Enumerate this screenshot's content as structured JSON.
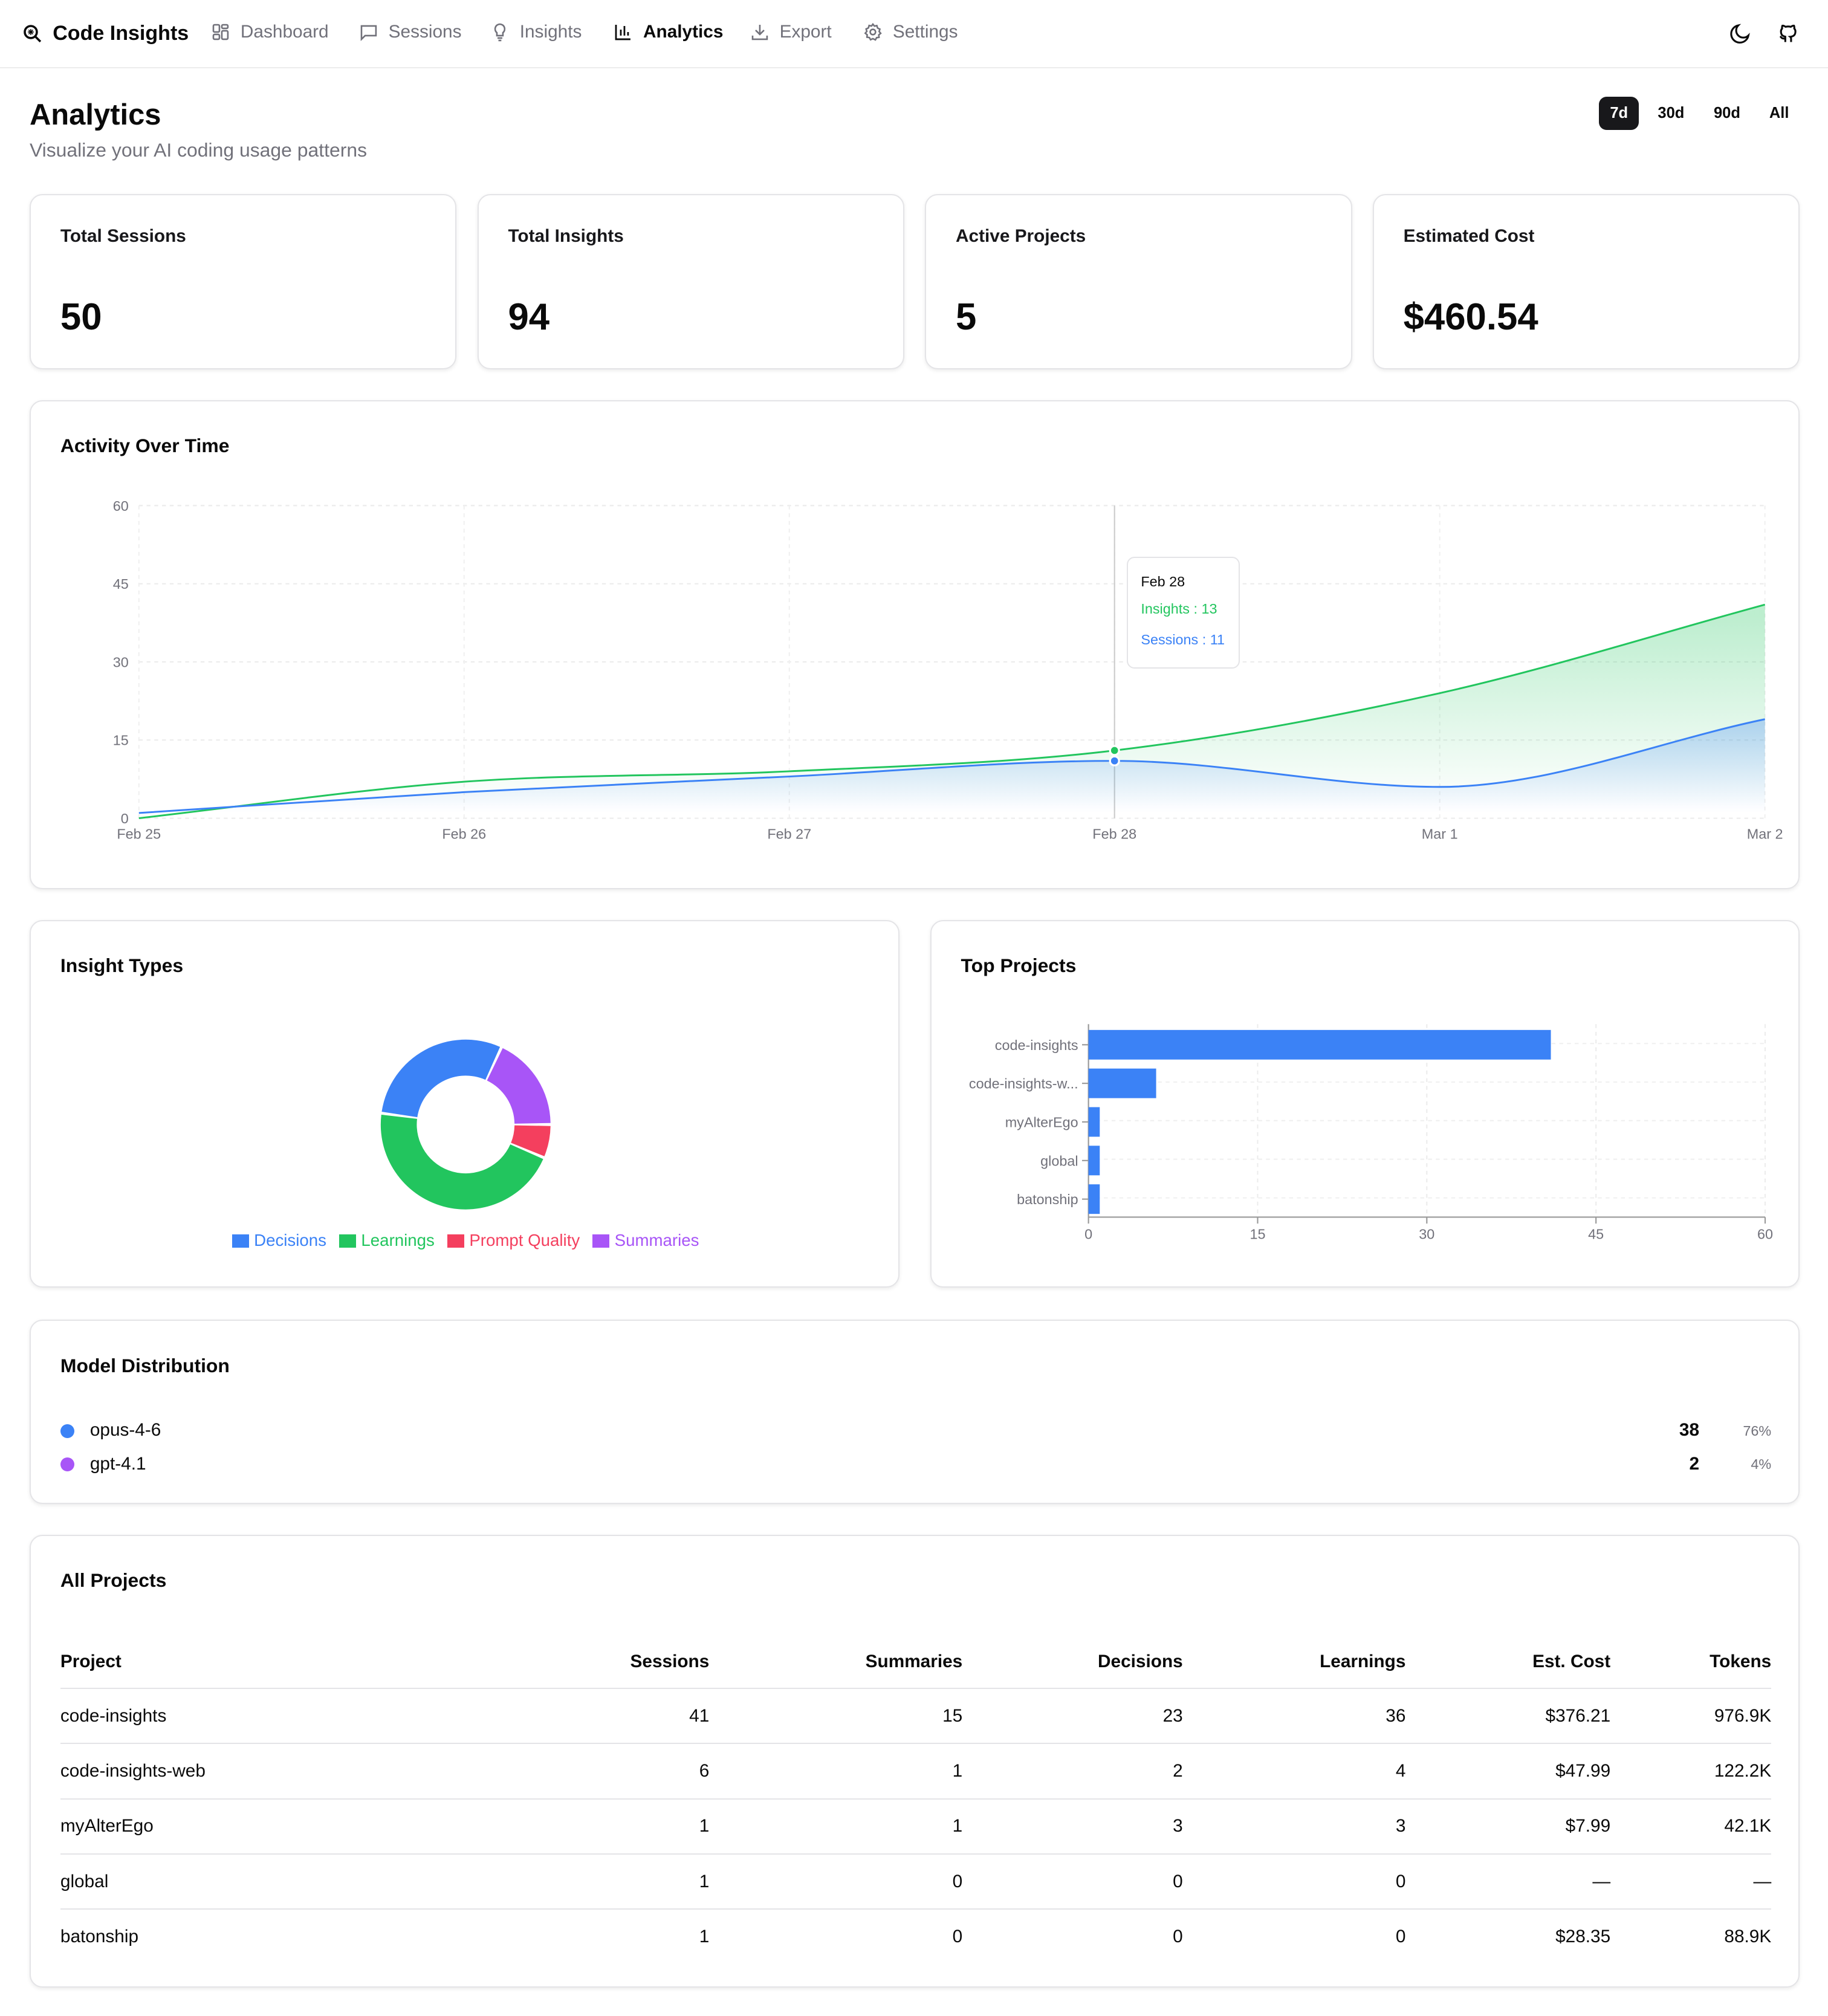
{
  "nav": {
    "brand": "Code Insights",
    "items": [
      {
        "label": "Dashboard",
        "icon": "grid-icon"
      },
      {
        "label": "Sessions",
        "icon": "message-icon"
      },
      {
        "label": "Insights",
        "icon": "lightbulb-icon"
      },
      {
        "label": "Analytics",
        "icon": "bar-chart-icon",
        "active": true
      },
      {
        "label": "Export",
        "icon": "download-icon"
      },
      {
        "label": "Settings",
        "icon": "gear-icon"
      }
    ],
    "right_icons": [
      "moon-icon",
      "github-icon"
    ]
  },
  "header": {
    "title": "Analytics",
    "subtitle": "Visualize your AI coding usage patterns",
    "ranges": [
      "7d",
      "30d",
      "90d",
      "All"
    ],
    "active_range": "7d"
  },
  "stats": [
    {
      "label": "Total Sessions",
      "value": "50"
    },
    {
      "label": "Total Insights",
      "value": "94"
    },
    {
      "label": "Active Projects",
      "value": "5"
    },
    {
      "label": "Estimated Cost",
      "value": "$460.54"
    }
  ],
  "colors": {
    "blue": "#3b82f6",
    "green": "#22c55e",
    "red": "#f43f5e",
    "purple": "#a855f7"
  },
  "chart_data": [
    {
      "type": "area",
      "title": "Activity Over Time",
      "categories": [
        "Feb 25",
        "Feb 26",
        "Feb 27",
        "Feb 28",
        "Mar 1",
        "Mar 2"
      ],
      "series": [
        {
          "name": "Insights",
          "color": "#22c55e",
          "values": [
            0,
            7,
            9,
            13,
            24,
            41
          ]
        },
        {
          "name": "Sessions",
          "color": "#3b82f6",
          "values": [
            1,
            5,
            8,
            11,
            6,
            19
          ]
        }
      ],
      "yticks": [
        "0",
        "15",
        "30",
        "45",
        "60"
      ],
      "ylim": [
        0,
        60
      ],
      "grid": true,
      "tooltip": {
        "label": "Feb 28",
        "insights": "Insights : 13",
        "sessions": "Sessions : 11"
      }
    },
    {
      "type": "pie",
      "title": "Insight Types",
      "slices": [
        {
          "name": "Decisions",
          "value": 28,
          "color": "#3b82f6"
        },
        {
          "name": "Learnings",
          "value": 43,
          "color": "#22c55e"
        },
        {
          "name": "Prompt Quality",
          "value": 6,
          "color": "#f43f5e"
        },
        {
          "name": "Summaries",
          "value": 17,
          "color": "#a855f7"
        }
      ],
      "legend": "bottom"
    },
    {
      "type": "bar",
      "title": "Top Projects",
      "orientation": "horizontal",
      "categories": [
        "code-insights",
        "code-insights-w...",
        "myAlterEgo",
        "global",
        "batonship"
      ],
      "values": [
        41,
        6,
        1,
        1,
        1
      ],
      "xticks": [
        "0",
        "15",
        "30",
        "45",
        "60"
      ],
      "xlim": [
        0,
        60
      ],
      "color": "#3b82f6",
      "grid": true
    }
  ],
  "models": {
    "title": "Model Distribution",
    "items": [
      {
        "name": "opus-4-6",
        "count": "38",
        "pct": "76%",
        "color": "#3b82f6"
      },
      {
        "name": "gpt-4.1",
        "count": "2",
        "pct": "4%",
        "color": "#a855f7"
      }
    ]
  },
  "projects": {
    "title": "All Projects",
    "columns": [
      "Project",
      "Sessions",
      "Summaries",
      "Decisions",
      "Learnings",
      "Est. Cost",
      "Tokens"
    ],
    "rows": [
      [
        "code-insights",
        "41",
        "15",
        "23",
        "36",
        "$376.21",
        "976.9K"
      ],
      [
        "code-insights-web",
        "6",
        "1",
        "2",
        "4",
        "$47.99",
        "122.2K"
      ],
      [
        "myAlterEgo",
        "1",
        "1",
        "3",
        "3",
        "$7.99",
        "42.1K"
      ],
      [
        "global",
        "1",
        "0",
        "0",
        "0",
        "—",
        "—"
      ],
      [
        "batonship",
        "1",
        "0",
        "0",
        "0",
        "$28.35",
        "88.9K"
      ]
    ]
  }
}
